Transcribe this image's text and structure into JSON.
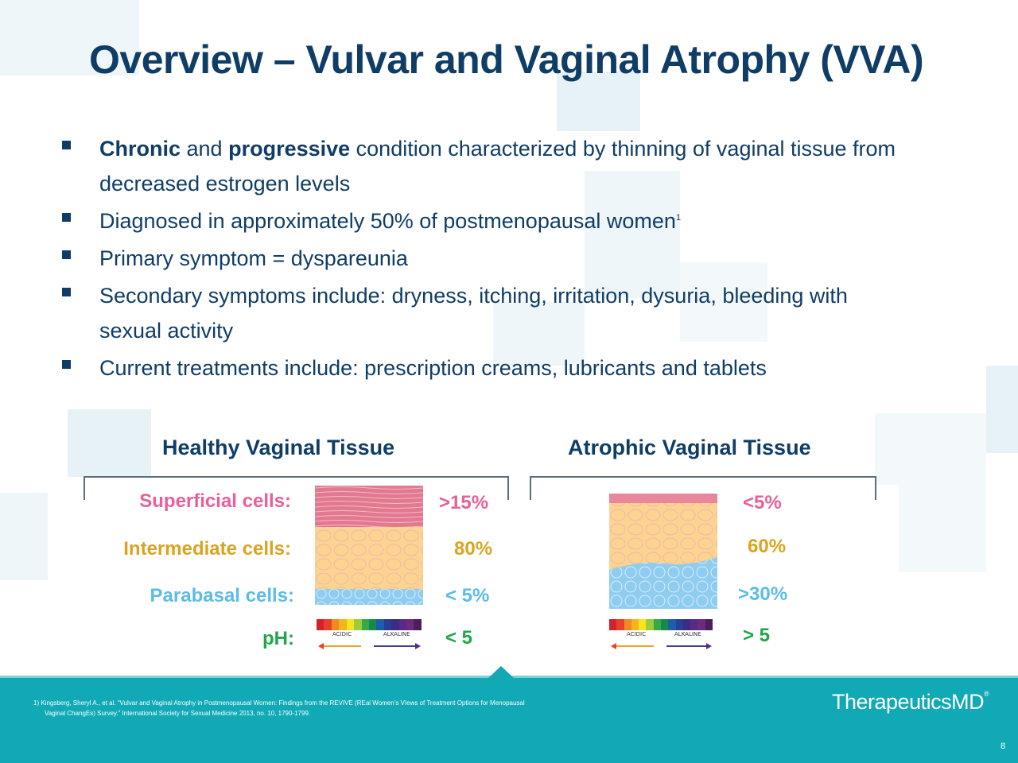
{
  "title": "Overview – Vulvar and Vaginal Atrophy (VVA)",
  "bullets": [
    {
      "bold1": "Chronic",
      "mid1": " and ",
      "bold2": "progressive",
      "rest": " condition characterized by thinning of vaginal tissue from decreased estrogen levels"
    },
    {
      "text": "Diagnosed in approximately 50% of postmenopausal women",
      "sup": "1"
    },
    {
      "text": "Primary symptom = dyspareunia"
    },
    {
      "text": "Secondary symptoms include: dryness, itching, irritation, dysuria, bleeding with sexual activity"
    },
    {
      "text": "Current treatments include: prescription creams, lubricants and tablets"
    }
  ],
  "healthy": {
    "heading": "Healthy Vaginal Tissue",
    "superficial": ">15%",
    "intermediate": "80%",
    "parabasal": "< 5%",
    "ph": "< 5"
  },
  "atrophic": {
    "heading": "Atrophic Vaginal Tissue",
    "superficial": "<5%",
    "intermediate": "60%",
    "parabasal": ">30%",
    "ph": "> 5"
  },
  "labels": {
    "superficial": "Superficial cells:",
    "intermediate": "Intermediate cells:",
    "parabasal": "Parabasal cells:",
    "ph": "pH:"
  },
  "ph_scale": {
    "acidic": "ACIDIC",
    "alkaline": "ALKALINE"
  },
  "colors": {
    "superficial": "#e8609a",
    "intermediate": "#d9a420",
    "parabasal": "#5bbce8",
    "ph": "#1fa64a",
    "title": "#0f3d66",
    "footer": "#10a9b5"
  },
  "footer": {
    "reference_line1": "1) Kingsberg, Sheryl A., et al. “Vulvar and Vaginal Atrophy in Postmenopausal Women: Findings from the REVIVE (REal Women’s VIews of Treatment Options for Menopausal",
    "reference_line2": "Vaginal ChangEs) Survey.” International Society for Sexual Medicine 2013, no. 10, 1790-1799.",
    "logo": "TherapeuticsMD",
    "logo_mark": "®",
    "page_number": "8"
  }
}
